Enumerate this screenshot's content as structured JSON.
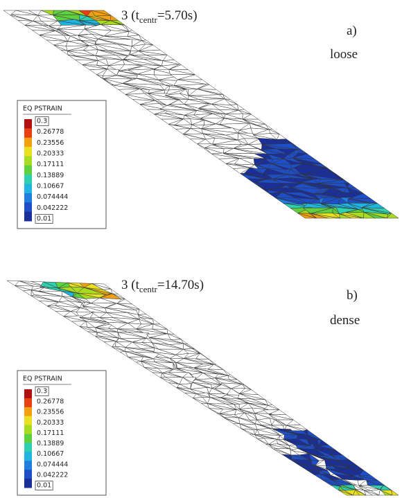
{
  "panels": [
    {
      "caption": {
        "prefix": "3 (t",
        "sub": "centr",
        "suffix": "=5.70s)"
      },
      "label": "a)",
      "state": "loose",
      "legend": {
        "title": "EQ PSTRAIN",
        "levels": [
          "0.3",
          "0.26778",
          "0.23556",
          "0.20333",
          "0.17111",
          "0.13889",
          "0.10667",
          "0.074444",
          "0.042222",
          "0.01"
        ]
      }
    },
    {
      "caption": {
        "prefix": "3 (t",
        "sub": "centr",
        "suffix": "=14.70s)"
      },
      "label": "b)",
      "state": "dense",
      "legend": {
        "title": "EQ PSTRAIN",
        "levels": [
          "0.3",
          "0.26778",
          "0.23556",
          "0.20333",
          "0.17111",
          "0.13889",
          "0.10667",
          "0.074444",
          "0.042222",
          "0.01"
        ]
      }
    }
  ]
}
